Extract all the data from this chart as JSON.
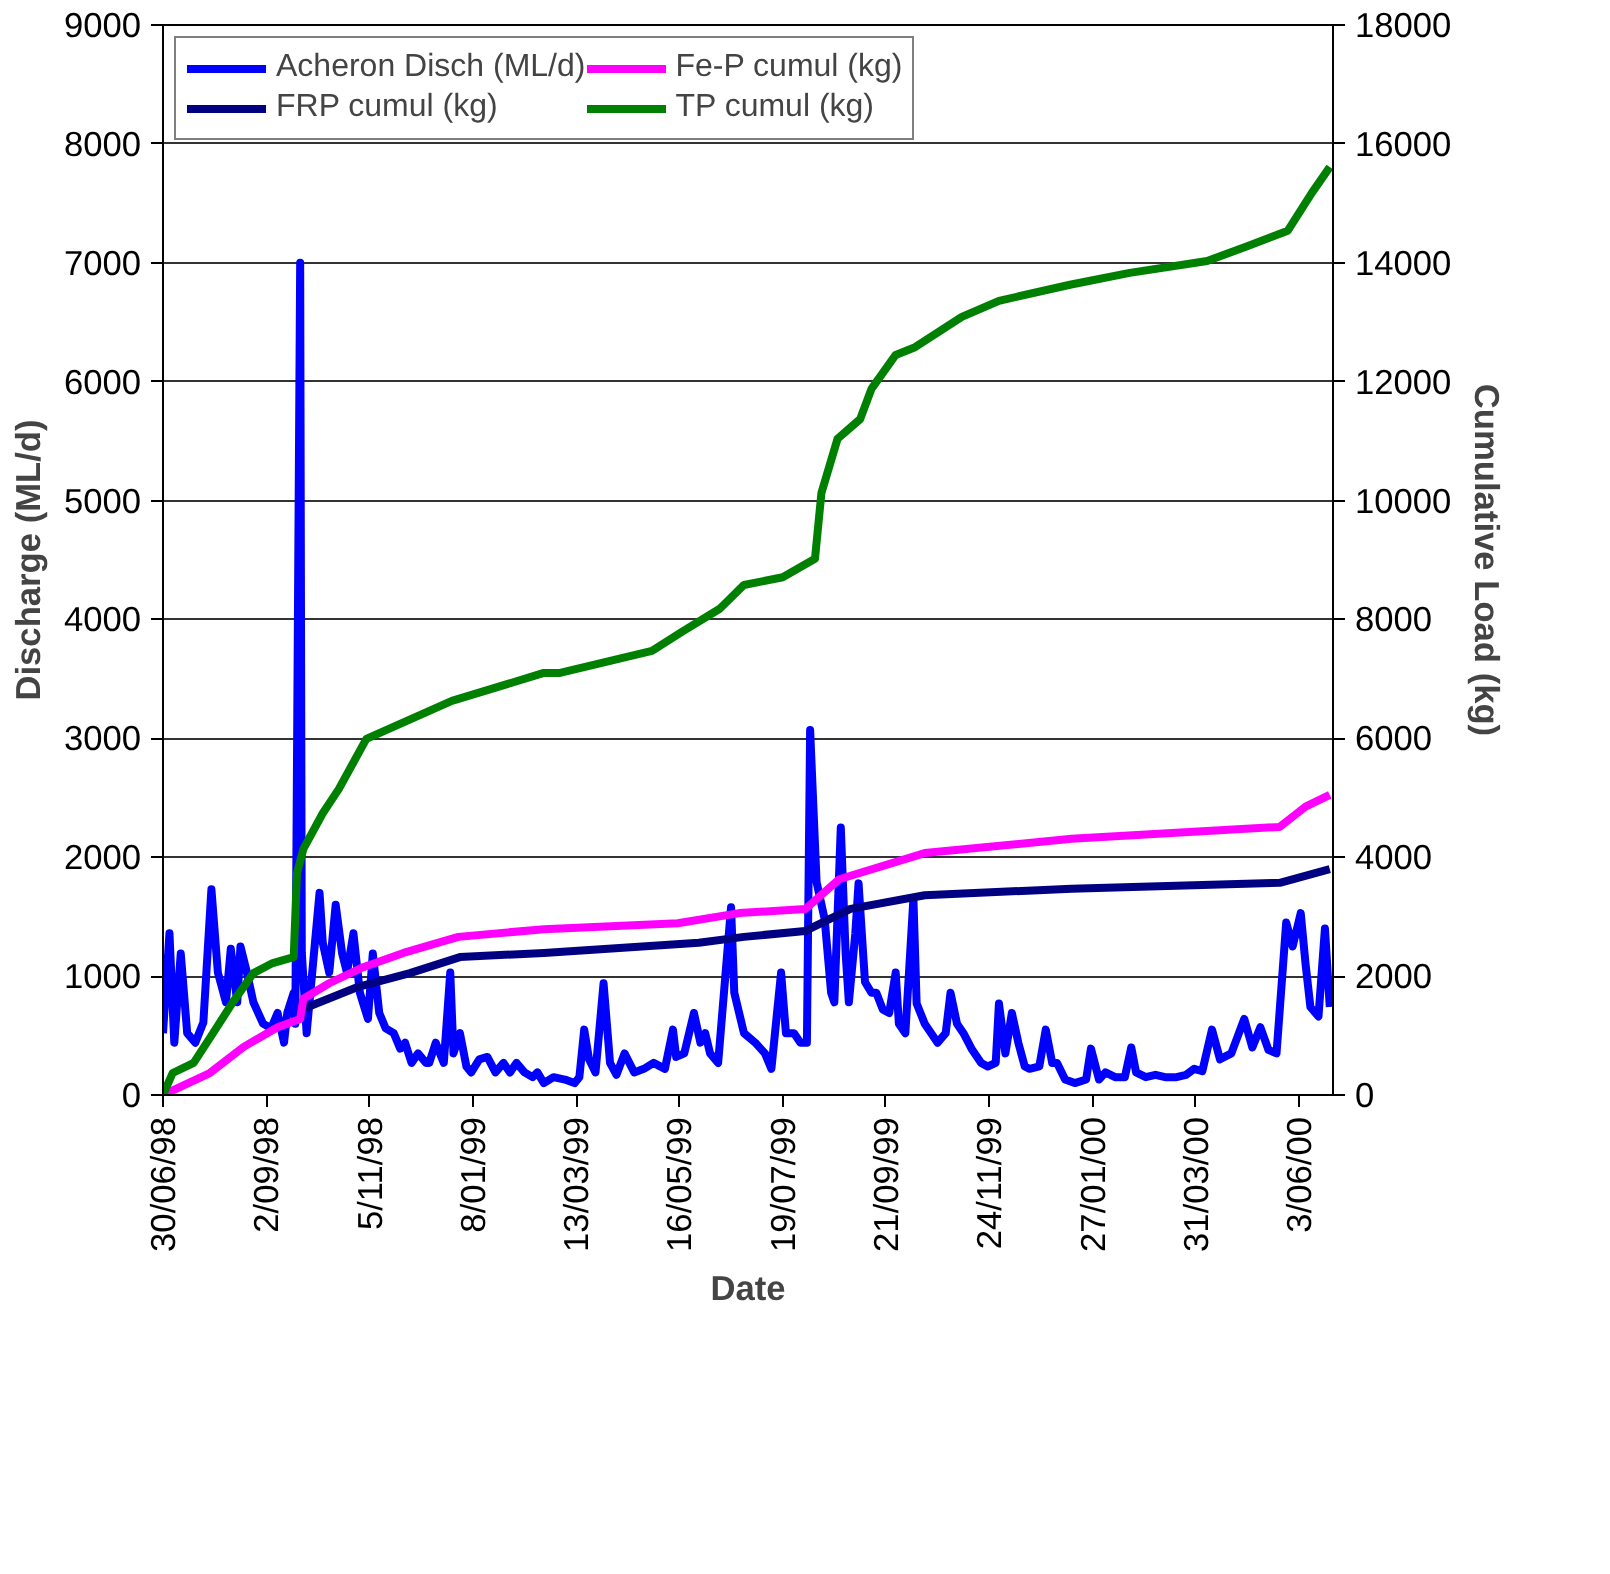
{
  "chart_data": {
    "type": "line",
    "xlabel": "Date",
    "ylabel": "Discharge (ML/d)",
    "y2label": "Cumulative Load (kg)",
    "xlim": [
      "1998-06-30",
      "2000-06-24"
    ],
    "ylim": [
      0,
      9000
    ],
    "y2lim": [
      0,
      18000
    ],
    "yticks": [
      0,
      1000,
      2000,
      3000,
      4000,
      5000,
      6000,
      7000,
      8000,
      9000
    ],
    "y2ticks": [
      0,
      2000,
      4000,
      6000,
      8000,
      10000,
      12000,
      14000,
      16000,
      18000
    ],
    "xticks": [
      {
        "value": "1998-06-30",
        "label": "30/06/98"
      },
      {
        "value": "1998-09-02",
        "label": "2/09/98"
      },
      {
        "value": "1998-11-05",
        "label": "5/11/98"
      },
      {
        "value": "1999-01-08",
        "label": "8/01/99"
      },
      {
        "value": "1999-03-13",
        "label": "13/03/99"
      },
      {
        "value": "1999-05-16",
        "label": "16/05/99"
      },
      {
        "value": "1999-07-19",
        "label": "19/07/99"
      },
      {
        "value": "1999-09-21",
        "label": "21/09/99"
      },
      {
        "value": "1999-11-24",
        "label": "24/11/99"
      },
      {
        "value": "2000-01-27",
        "label": "27/01/00"
      },
      {
        "value": "2000-03-31",
        "label": "31/03/00"
      },
      {
        "value": "2000-06-03",
        "label": "3/06/00"
      }
    ],
    "grid": "y",
    "legend": "top left",
    "marker": "none",
    "line_style": "solid",
    "series": [
      {
        "name": "Acheron Disch (ML/d)",
        "color": "#0000ff",
        "x": [
          "1998-06-30",
          "1998-07-04",
          "1998-07-07",
          "1998-07-11",
          "1998-07-15",
          "1998-07-20",
          "1998-07-25",
          "1998-07-30",
          "1998-08-03",
          "1998-08-08",
          "1998-08-11",
          "1998-08-15",
          "1998-08-17",
          "1998-08-21",
          "1998-08-25",
          "1998-08-27",
          "1998-08-31",
          "1998-09-05",
          "1998-09-09",
          "1998-09-13",
          "1998-09-15",
          "1998-09-19",
          "1998-09-20",
          "1998-09-23",
          "1998-09-24",
          "1998-09-27",
          "1998-10-01",
          "1998-10-05",
          "1998-10-07",
          "1998-10-11",
          "1998-10-15",
          "1998-10-19",
          "1998-10-22",
          "1998-10-26",
          "1998-10-30",
          "1998-11-04",
          "1998-11-07",
          "1998-11-11",
          "1998-11-15",
          "1998-11-20",
          "1998-11-24",
          "1998-11-27",
          "1998-12-01",
          "1998-12-05",
          "1998-12-10",
          "1998-12-12",
          "1998-12-16",
          "1998-12-21",
          "1998-12-25",
          "1998-12-27",
          "1998-12-31",
          "1999-01-04",
          "1999-01-07",
          "1999-01-12",
          "1999-01-17",
          "1999-01-22",
          "1999-01-27",
          "1999-01-31",
          "1999-02-04",
          "1999-02-09",
          "1999-02-14",
          "1999-02-17",
          "1999-02-21",
          "1999-02-27",
          "1999-03-06",
          "1999-03-12",
          "1999-03-15",
          "1999-03-18",
          "1999-03-21",
          "1999-03-25",
          "1999-03-30",
          "1999-04-03",
          "1999-04-07",
          "1999-04-12",
          "1999-04-18",
          "1999-04-24",
          "1999-04-30",
          "1999-05-07",
          "1999-05-12",
          "1999-05-14",
          "1999-05-19",
          "1999-05-25",
          "1999-05-29",
          "1999-06-01",
          "1999-06-04",
          "1999-06-09",
          "1999-06-17",
          "1999-06-19",
          "1999-06-25",
          "1999-07-02",
          "1999-07-08",
          "1999-07-12",
          "1999-07-18",
          "1999-07-21",
          "1999-07-26",
          "1999-07-30",
          "1999-08-03",
          "1999-08-05",
          "1999-08-09",
          "1999-08-14",
          "1999-08-18",
          "1999-08-20",
          "1999-08-24",
          "1999-08-27",
          "1999-08-29",
          "1999-09-02",
          "1999-09-04",
          "1999-09-08",
          "1999-09-12",
          "1999-09-15",
          "1999-09-19",
          "1999-09-23",
          "1999-09-27",
          "1999-09-29",
          "1999-10-03",
          "1999-10-08",
          "1999-10-10",
          "1999-10-15",
          "1999-10-19",
          "1999-10-23",
          "1999-10-28",
          "1999-10-31",
          "1999-11-04",
          "1999-11-08",
          "1999-11-13",
          "1999-11-19",
          "1999-11-23",
          "1999-11-28",
          "1999-11-30",
          "1999-12-04",
          "1999-12-08",
          "1999-12-12",
          "1999-12-16",
          "1999-12-19",
          "1999-12-25",
          "1999-12-29",
          "2000-01-02",
          "2000-01-05",
          "2000-01-10",
          "2000-01-16",
          "2000-01-23",
          "2000-01-26",
          "2000-01-31",
          "2000-02-04",
          "2000-02-10",
          "2000-02-16",
          "2000-02-20",
          "2000-02-23",
          "2000-02-29",
          "2000-03-06",
          "2000-03-12",
          "2000-03-19",
          "2000-03-25",
          "2000-03-30",
          "2000-04-04",
          "2000-04-10",
          "2000-04-15",
          "2000-04-22",
          "2000-04-30",
          "2000-05-05",
          "2000-05-10",
          "2000-05-15",
          "2000-05-20",
          "2000-05-26",
          "2000-05-30",
          "2000-06-04",
          "2000-06-07",
          "2000-06-10",
          "2000-06-15",
          "2000-06-19",
          "2000-06-22"
        ],
        "values": [
          520,
          1360,
          440,
          1190,
          520,
          440,
          610,
          1730,
          1030,
          780,
          1230,
          780,
          1250,
          1030,
          780,
          720,
          600,
          560,
          690,
          440,
          690,
          860,
          600,
          7000,
          1200,
          520,
          1110,
          1700,
          1280,
          1030,
          1600,
          1190,
          1030,
          1360,
          860,
          640,
          1190,
          690,
          560,
          520,
          390,
          440,
          270,
          350,
          270,
          270,
          440,
          270,
          1030,
          350,
          520,
          240,
          190,
          300,
          320,
          190,
          270,
          190,
          270,
          190,
          150,
          190,
          100,
          150,
          130,
          100,
          150,
          550,
          300,
          190,
          940,
          270,
          170,
          350,
          190,
          220,
          270,
          220,
          550,
          320,
          350,
          690,
          440,
          520,
          350,
          270,
          1580,
          860,
          520,
          440,
          350,
          220,
          1030,
          520,
          520,
          440,
          440,
          3070,
          1790,
          1480,
          860,
          780,
          2250,
          1190,
          780,
          1360,
          1780,
          950,
          860,
          860,
          720,
          690,
          1030,
          600,
          520,
          1650,
          770,
          600,
          520,
          440,
          520,
          860,
          600,
          520,
          390,
          270,
          240,
          270,
          770,
          350,
          690,
          440,
          240,
          220,
          240,
          550,
          270,
          270,
          130,
          100,
          130,
          390,
          130,
          190,
          150,
          150,
          400,
          190,
          150,
          170,
          150,
          150,
          170,
          220,
          200,
          550,
          300,
          350,
          640,
          400,
          570,
          380,
          350,
          1450,
          1250,
          1530,
          1100,
          740,
          660,
          1400,
          740
        ]
      },
      {
        "name": "FRP cumul (kg)",
        "color": "#000080",
        "axis": "y2",
        "x": [
          "1998-09-23",
          "1998-09-25",
          "1998-10-29",
          "1998-11-30",
          "1998-12-31",
          "1999-02-21",
          "1999-05-28",
          "1999-06-25",
          "1999-08-02",
          "1999-08-30",
          "1999-10-15",
          "2000-01-14",
          "2000-05-22",
          "2000-06-22"
        ],
        "values": [
          1280,
          1450,
          1820,
          2050,
          2320,
          2390,
          2560,
          2660,
          2760,
          3130,
          3360,
          3470,
          3570,
          3800
        ]
      },
      {
        "name": "Fe-P cumul (kg)",
        "color": "#ff00ff",
        "axis": "y2",
        "x": [
          "1998-06-30",
          "1998-07-29",
          "1998-08-19",
          "1998-09-09",
          "1998-09-23",
          "1998-09-25",
          "1998-10-11",
          "1998-11-01",
          "1998-11-26",
          "1998-12-30",
          "1999-02-21",
          "1999-05-15",
          "1999-06-22",
          "1999-08-02",
          "1999-08-23",
          "1999-10-15",
          "2000-01-14",
          "2000-05-22",
          "2000-06-07",
          "2000-06-22"
        ],
        "values": [
          0,
          370,
          810,
          1140,
          1280,
          1620,
          1880,
          2150,
          2390,
          2660,
          2790,
          2890,
          3060,
          3130,
          3630,
          4070,
          4310,
          4510,
          4850,
          5050
        ]
      },
      {
        "name": "TP cumul (kg)",
        "color": "#008000",
        "axis": "y2",
        "x": [
          "1998-06-30",
          "1998-07-06",
          "1998-07-19",
          "1998-07-31",
          "1998-08-12",
          "1998-08-25",
          "1998-09-06",
          "1998-09-19",
          "1998-09-21",
          "1998-09-25",
          "1998-10-07",
          "1998-10-17",
          "1998-11-03",
          "1998-12-26",
          "1999-02-21",
          "1999-03-03",
          "1999-04-29",
          "1999-05-18",
          "1999-06-10",
          "1999-06-25",
          "1999-07-19",
          "1999-08-08",
          "1999-08-12",
          "1999-08-22",
          "1999-09-05",
          "1999-09-12",
          "1999-09-27",
          "1999-10-09",
          "1999-11-07",
          "1999-11-30",
          "2000-01-13",
          "2000-02-19",
          "2000-04-07",
          "2000-05-01",
          "2000-05-27",
          "2000-06-11",
          "2000-06-22"
        ],
        "values": [
          0,
          370,
          540,
          1040,
          1550,
          2050,
          2220,
          2320,
          3730,
          4140,
          4740,
          5150,
          5990,
          6630,
          7100,
          7100,
          7470,
          7800,
          8180,
          8580,
          8710,
          9020,
          10130,
          11040,
          11370,
          11880,
          12450,
          12580,
          13090,
          13360,
          13630,
          13830,
          14030,
          14270,
          14540,
          15180,
          15610
        ]
      }
    ]
  }
}
